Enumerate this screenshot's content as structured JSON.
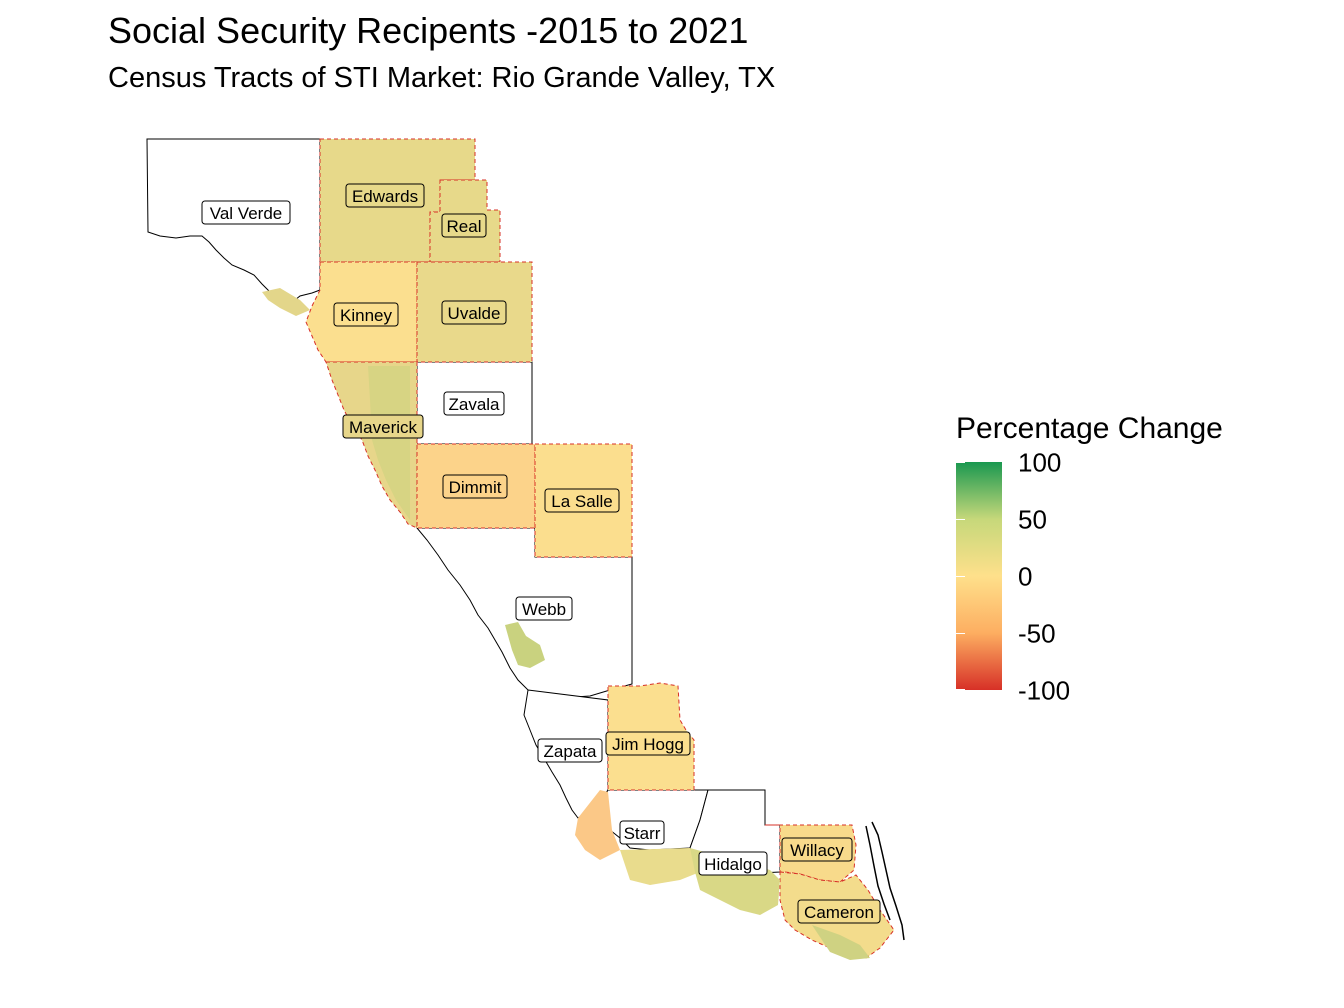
{
  "title": "Social Security Recipents -2015 to 2021",
  "subtitle": "Census Tracts of STI Market: Rio Grande Valley, TX",
  "legend": {
    "title": "Percentage Change",
    "ticks": [
      "100",
      "50",
      "0",
      "-50",
      "-100"
    ],
    "colors": [
      "#1a9850",
      "#c6d87a",
      "#fee08b",
      "#fdae61",
      "#d73027"
    ]
  },
  "counties": {
    "val_verde": "Val Verde",
    "edwards": "Edwards",
    "real": "Real",
    "kinney": "Kinney",
    "uvalde": "Uvalde",
    "zavala": "Zavala",
    "maverick": "Maverick",
    "dimmit": "Dimmit",
    "la_salle": "La Salle",
    "webb": "Webb",
    "zapata": "Zapata",
    "jim_hogg": "Jim Hogg",
    "starr": "Starr",
    "hidalgo": "Hidalgo",
    "willacy": "Willacy",
    "cameron": "Cameron"
  }
}
